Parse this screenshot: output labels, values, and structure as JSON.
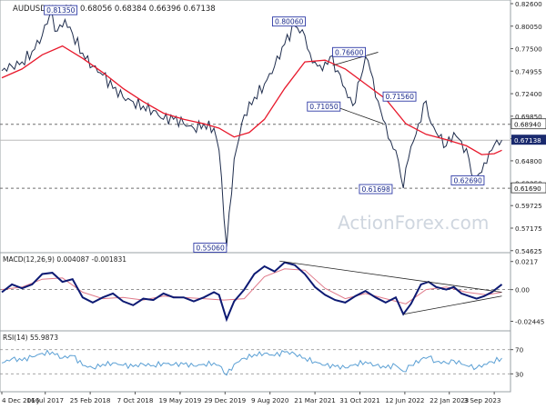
{
  "colors": {
    "price": "#1f2d4d",
    "ma": "#e8192c",
    "macd": "#0d1a73",
    "signal": "#e07a8a",
    "rsi": "#5a9fd4",
    "box_border": "#2e3aa6",
    "box_text": "#1a2a8a",
    "grid_dashed": "#6f6f6f",
    "current_line": "#bbbbbb",
    "tag_bg": "#1a2a6e",
    "watermark": "#cfd6df"
  },
  "header": {
    "symbol": "AUDUSD,Weekly",
    "ohlc": "0.68056  0.68384  0.66396  0.67138",
    "macd_label": "MACD(12,26,9)  0.004087  -0.001831",
    "rsi_label": "RSI(14)  55.9873"
  },
  "watermark": "ActionForex.com",
  "chart_data": [
    {
      "type": "line",
      "panel": "price",
      "y_ticks": [
        "0.82600",
        "0.80050",
        "0.77500",
        "0.74955",
        "0.72400",
        "0.69850",
        "0.67300",
        "0.64800",
        "0.62250",
        "0.59725",
        "0.57175",
        "0.54625"
      ],
      "ylim": [
        0.546,
        0.826
      ],
      "xlim": [
        0,
        100
      ],
      "x_labels": [
        {
          "label": "4 Dec 2016",
          "x": 0
        },
        {
          "label": "16 Jul 2017",
          "x": 8.6
        },
        {
          "label": "25 Feb 2018",
          "x": 17.5
        },
        {
          "label": "7 Oct 2018",
          "x": 26.4
        },
        {
          "label": "19 May 2019",
          "x": 35.3
        },
        {
          "label": "29 Dec 2019",
          "x": 44.2
        },
        {
          "label": "9 Aug 2020",
          "x": 53.1
        },
        {
          "label": "21 Mar 2021",
          "x": 62
        },
        {
          "label": "31 Oct 2021",
          "x": 70.9
        },
        {
          "label": "12 Jun 2022",
          "x": 79.8
        },
        {
          "label": "22 Jan 2023",
          "x": 88.6
        },
        {
          "label": "3 Sep 2023",
          "x": 97.5
        }
      ],
      "price_points": [
        [
          0,
          0.75
        ],
        [
          2,
          0.755
        ],
        [
          4,
          0.76
        ],
        [
          6,
          0.772
        ],
        [
          8,
          0.79
        ],
        [
          9.5,
          0.8135
        ],
        [
          11,
          0.795
        ],
        [
          12.5,
          0.808
        ],
        [
          14,
          0.792
        ],
        [
          16,
          0.77
        ],
        [
          18,
          0.755
        ],
        [
          20,
          0.745
        ],
        [
          22,
          0.73
        ],
        [
          24,
          0.72
        ],
        [
          26,
          0.715
        ],
        [
          28,
          0.71
        ],
        [
          30,
          0.705
        ],
        [
          32,
          0.695
        ],
        [
          34,
          0.695
        ],
        [
          36,
          0.69
        ],
        [
          38,
          0.685
        ],
        [
          40,
          0.69
        ],
        [
          42,
          0.685
        ],
        [
          43,
          0.66
        ],
        [
          44.5,
          0.5506
        ],
        [
          46,
          0.65
        ],
        [
          48,
          0.7
        ],
        [
          50,
          0.72
        ],
        [
          52,
          0.735
        ],
        [
          54,
          0.755
        ],
        [
          56,
          0.78
        ],
        [
          58,
          0.8006
        ],
        [
          60,
          0.79
        ],
        [
          61,
          0.77
        ],
        [
          62,
          0.76
        ],
        [
          63.5,
          0.75
        ],
        [
          65,
          0.766
        ],
        [
          66.5,
          0.75
        ],
        [
          68,
          0.73
        ],
        [
          69.5,
          0.7105
        ],
        [
          71,
          0.74
        ],
        [
          72,
          0.766
        ],
        [
          73,
          0.75
        ],
        [
          74,
          0.72
        ],
        [
          75,
          0.705
        ],
        [
          76,
          0.69
        ],
        [
          77,
          0.67
        ],
        [
          78,
          0.66
        ],
        [
          79.5,
          0.617
        ],
        [
          80.5,
          0.65
        ],
        [
          81.5,
          0.67
        ],
        [
          82.5,
          0.69
        ],
        [
          84,
          0.7156
        ],
        [
          85,
          0.69
        ],
        [
          86.5,
          0.675
        ],
        [
          88,
          0.665
        ],
        [
          89.5,
          0.68
        ],
        [
          91,
          0.67
        ],
        [
          92.5,
          0.65
        ],
        [
          93.5,
          0.6269
        ],
        [
          95,
          0.635
        ],
        [
          96,
          0.645
        ],
        [
          97,
          0.66
        ],
        [
          98,
          0.6714
        ],
        [
          99,
          0.6714
        ]
      ],
      "ma_points": [
        [
          0,
          0.742
        ],
        [
          4,
          0.752
        ],
        [
          8,
          0.768
        ],
        [
          12,
          0.778
        ],
        [
          16,
          0.764
        ],
        [
          20,
          0.748
        ],
        [
          24,
          0.73
        ],
        [
          28,
          0.715
        ],
        [
          32,
          0.702
        ],
        [
          36,
          0.695
        ],
        [
          40,
          0.69
        ],
        [
          43,
          0.685
        ],
        [
          46,
          0.675
        ],
        [
          49,
          0.68
        ],
        [
          52,
          0.695
        ],
        [
          56,
          0.73
        ],
        [
          60,
          0.76
        ],
        [
          64,
          0.762
        ],
        [
          68,
          0.752
        ],
        [
          72,
          0.735
        ],
        [
          76,
          0.718
        ],
        [
          80,
          0.69
        ],
        [
          84,
          0.678
        ],
        [
          88,
          0.672
        ],
        [
          92,
          0.665
        ],
        [
          95,
          0.655
        ],
        [
          97.5,
          0.656
        ],
        [
          99,
          0.66
        ]
      ],
      "labels": [
        {
          "text": "0.81350",
          "x": 8.4,
          "y": 0.8135
        },
        {
          "text": "0.80060",
          "x": 53.6,
          "y": 0.8006
        },
        {
          "text": "0.76600",
          "x": 65.5,
          "y": 0.766
        },
        {
          "text": "0.71050",
          "x": 60.5,
          "y": 0.7105
        },
        {
          "text": "0.71560",
          "x": 75.5,
          "y": 0.7156
        },
        {
          "text": "0.61698",
          "x": 70.8,
          "y": 0.617
        },
        {
          "text": "0.62690",
          "x": 89.0,
          "y": 0.6269
        },
        {
          "text": "0.55060",
          "x": 38.0,
          "y": 0.5506
        }
      ],
      "hlines_dashed": [
        {
          "value": 0.6894,
          "label": "0.68940"
        },
        {
          "value": 0.6169,
          "label": "0.61690"
        }
      ],
      "current_value": {
        "value": 0.67138,
        "label": "0.67138"
      }
    },
    {
      "type": "line",
      "panel": "macd",
      "y_ticks": [
        "0.0217",
        "0.00",
        "-0.02445"
      ],
      "ylim": [
        -0.029,
        0.025
      ],
      "macd_points": [
        [
          0,
          -0.002
        ],
        [
          2,
          0.004
        ],
        [
          4,
          0.001
        ],
        [
          6,
          0.004
        ],
        [
          8,
          0.012
        ],
        [
          10,
          0.013
        ],
        [
          12,
          0.006
        ],
        [
          14,
          0.008
        ],
        [
          16,
          -0.006
        ],
        [
          18,
          -0.01
        ],
        [
          20,
          -0.006
        ],
        [
          22,
          -0.003
        ],
        [
          24,
          -0.009
        ],
        [
          26,
          -0.012
        ],
        [
          28,
          -0.007
        ],
        [
          30,
          -0.008
        ],
        [
          32,
          -0.003
        ],
        [
          34,
          -0.006
        ],
        [
          36,
          -0.006
        ],
        [
          38,
          -0.009
        ],
        [
          40,
          -0.006
        ],
        [
          42,
          -0.002
        ],
        [
          43,
          -0.004
        ],
        [
          44.5,
          -0.023
        ],
        [
          46,
          -0.009
        ],
        [
          48,
          0.0
        ],
        [
          50,
          0.012
        ],
        [
          52,
          0.018
        ],
        [
          54,
          0.014
        ],
        [
          56,
          0.021
        ],
        [
          58,
          0.019
        ],
        [
          60,
          0.012
        ],
        [
          62,
          0.002
        ],
        [
          64,
          -0.004
        ],
        [
          66,
          -0.008
        ],
        [
          68,
          -0.01
        ],
        [
          70,
          -0.005
        ],
        [
          72,
          -0.001
        ],
        [
          74,
          -0.006
        ],
        [
          76,
          -0.01
        ],
        [
          78,
          -0.006
        ],
        [
          79.5,
          -0.019
        ],
        [
          81,
          -0.011
        ],
        [
          83,
          0.004
        ],
        [
          84.5,
          0.006
        ],
        [
          86,
          0.002
        ],
        [
          88,
          0.0
        ],
        [
          89.5,
          0.002
        ],
        [
          91,
          -0.003
        ],
        [
          92.5,
          -0.005
        ],
        [
          94,
          -0.007
        ],
        [
          95.5,
          -0.005
        ],
        [
          97,
          -0.002
        ],
        [
          99,
          0.004
        ]
      ],
      "signal_points": [
        [
          0,
          0.0
        ],
        [
          4,
          0.002
        ],
        [
          8,
          0.008
        ],
        [
          12,
          0.009
        ],
        [
          16,
          -0.002
        ],
        [
          20,
          -0.007
        ],
        [
          24,
          -0.006
        ],
        [
          28,
          -0.008
        ],
        [
          32,
          -0.005
        ],
        [
          36,
          -0.006
        ],
        [
          40,
          -0.007
        ],
        [
          44,
          -0.008
        ],
        [
          48,
          -0.007
        ],
        [
          52,
          0.01
        ],
        [
          56,
          0.016
        ],
        [
          60,
          0.015
        ],
        [
          64,
          0.001
        ],
        [
          68,
          -0.007
        ],
        [
          72,
          -0.003
        ],
        [
          76,
          -0.007
        ],
        [
          80,
          -0.011
        ],
        [
          84,
          0.0
        ],
        [
          88,
          0.002
        ],
        [
          92,
          -0.002
        ],
        [
          96,
          -0.004
        ],
        [
          99,
          -0.002
        ]
      ],
      "trend_lines": [
        [
          [
            55,
            0.022
          ],
          [
            99,
            -0.002
          ]
        ],
        [
          [
            79.5,
            -0.019
          ],
          [
            99,
            -0.005
          ]
        ]
      ]
    },
    {
      "type": "line",
      "panel": "rsi",
      "y_ticks": [
        "70",
        "30"
      ],
      "ylim": [
        5,
        95
      ],
      "rsi_points": [
        [
          0,
          48
        ],
        [
          2,
          55
        ],
        [
          4,
          52
        ],
        [
          6,
          58
        ],
        [
          8,
          64
        ],
        [
          10,
          66
        ],
        [
          12,
          56
        ],
        [
          14,
          60
        ],
        [
          16,
          44
        ],
        [
          18,
          40
        ],
        [
          20,
          46
        ],
        [
          22,
          48
        ],
        [
          24,
          44
        ],
        [
          26,
          42
        ],
        [
          28,
          46
        ],
        [
          30,
          44
        ],
        [
          32,
          48
        ],
        [
          34,
          45
        ],
        [
          36,
          46
        ],
        [
          38,
          43
        ],
        [
          40,
          46
        ],
        [
          42,
          48
        ],
        [
          43,
          44
        ],
        [
          44.5,
          28
        ],
        [
          46,
          46
        ],
        [
          48,
          56
        ],
        [
          50,
          62
        ],
        [
          52,
          64
        ],
        [
          54,
          60
        ],
        [
          56,
          66
        ],
        [
          58,
          63
        ],
        [
          60,
          56
        ],
        [
          62,
          50
        ],
        [
          64,
          44
        ],
        [
          66,
          42
        ],
        [
          68,
          40
        ],
        [
          70,
          46
        ],
        [
          72,
          50
        ],
        [
          74,
          44
        ],
        [
          76,
          40
        ],
        [
          78,
          44
        ],
        [
          79.5,
          34
        ],
        [
          81,
          44
        ],
        [
          83,
          54
        ],
        [
          84.5,
          58
        ],
        [
          86,
          50
        ],
        [
          88,
          48
        ],
        [
          89.5,
          52
        ],
        [
          91,
          46
        ],
        [
          92.5,
          42
        ],
        [
          94,
          40
        ],
        [
          95.5,
          46
        ],
        [
          97,
          50
        ],
        [
          99,
          56
        ]
      ]
    }
  ]
}
